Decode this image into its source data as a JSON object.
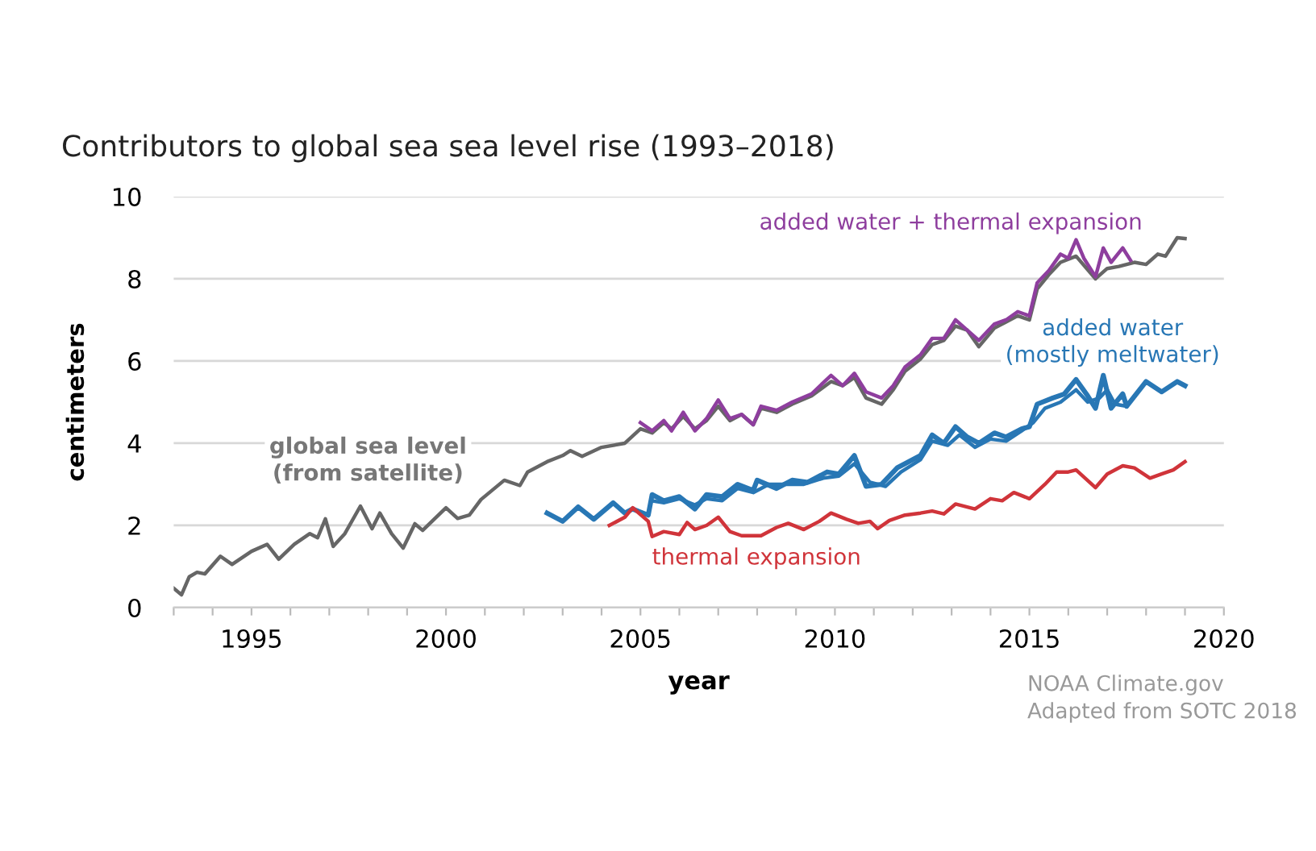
{
  "chart_data": {
    "type": "line",
    "title": "Contributors to global sea sea level rise (1993–2018)",
    "xlabel": "year",
    "ylabel": "centimeters",
    "xlim": [
      1993,
      2020
    ],
    "ylim": [
      0,
      10
    ],
    "yticks": [
      0,
      2,
      4,
      6,
      8,
      10
    ],
    "xticks": [
      {
        "value": 1993,
        "label": null
      },
      {
        "value": 1994,
        "label": null
      },
      {
        "value": 1995,
        "label": "1995"
      },
      {
        "value": 1996,
        "label": null
      },
      {
        "value": 1997,
        "label": null
      },
      {
        "value": 1998,
        "label": null
      },
      {
        "value": 1999,
        "label": null
      },
      {
        "value": 2000,
        "label": "2000"
      },
      {
        "value": 2001,
        "label": null
      },
      {
        "value": 2002,
        "label": null
      },
      {
        "value": 2003,
        "label": null
      },
      {
        "value": 2004,
        "label": null
      },
      {
        "value": 2005,
        "label": "2005"
      },
      {
        "value": 2006,
        "label": null
      },
      {
        "value": 2007,
        "label": null
      },
      {
        "value": 2008,
        "label": null
      },
      {
        "value": 2009,
        "label": null
      },
      {
        "value": 2010,
        "label": "2010"
      },
      {
        "value": 2011,
        "label": null
      },
      {
        "value": 2012,
        "label": null
      },
      {
        "value": 2013,
        "label": null
      },
      {
        "value": 2014,
        "label": null
      },
      {
        "value": 2015,
        "label": "2015"
      },
      {
        "value": 2016,
        "label": null
      },
      {
        "value": 2017,
        "label": null
      },
      {
        "value": 2018,
        "label": null
      },
      {
        "value": 2019,
        "label": null
      },
      {
        "value": 2020,
        "label": "2020"
      }
    ],
    "grid": "y",
    "legend": false,
    "marker": "none",
    "line_style": "solid",
    "series": [
      {
        "name": "global sea level\n(from satellite)",
        "color": "#666666",
        "x": [
          1993.0,
          1993.2,
          1993.4,
          1993.6,
          1993.8,
          1994.2,
          1994.5,
          1995.0,
          1995.4,
          1995.7,
          1996.1,
          1996.5,
          1996.7,
          1996.9,
          1997.1,
          1997.4,
          1997.8,
          1998.1,
          1998.3,
          1998.6,
          1998.9,
          1999.2,
          1999.4,
          2000.0,
          2000.3,
          2000.6,
          2000.9,
          2001.5,
          2001.9,
          2002.1,
          2002.6,
          2003.0,
          2003.2,
          2003.5,
          2004.0,
          2004.6,
          2005.0,
          2005.3,
          2005.6,
          2005.8,
          2006.1,
          2006.4,
          2006.7,
          2007.0,
          2007.3,
          2007.6,
          2007.9,
          2008.1,
          2008.5,
          2008.9,
          2009.4,
          2009.9,
          2010.2,
          2010.5,
          2010.8,
          2011.2,
          2011.5,
          2011.8,
          2012.2,
          2012.5,
          2012.8,
          2013.1,
          2013.4,
          2013.7,
          2014.1,
          2014.4,
          2014.7,
          2015.0,
          2015.2,
          2015.5,
          2015.8,
          2016.2,
          2016.7,
          2017.0,
          2017.3,
          2017.7,
          2018.0,
          2018.3,
          2018.5,
          2018.8,
          2019.0
        ],
        "values": [
          0.47,
          0.31,
          0.75,
          0.86,
          0.82,
          1.25,
          1.05,
          1.37,
          1.54,
          1.18,
          1.54,
          1.8,
          1.7,
          2.16,
          1.49,
          1.8,
          2.47,
          1.92,
          2.3,
          1.8,
          1.45,
          2.04,
          1.88,
          2.43,
          2.17,
          2.25,
          2.63,
          3.1,
          2.97,
          3.3,
          3.55,
          3.7,
          3.82,
          3.68,
          3.9,
          4.0,
          4.35,
          4.25,
          4.5,
          4.35,
          4.65,
          4.35,
          4.55,
          4.9,
          4.55,
          4.7,
          4.45,
          4.85,
          4.75,
          4.95,
          5.15,
          5.5,
          5.4,
          5.6,
          5.1,
          4.95,
          5.3,
          5.75,
          6.05,
          6.4,
          6.5,
          6.85,
          6.75,
          6.35,
          6.8,
          6.95,
          7.1,
          7.0,
          7.75,
          8.1,
          8.4,
          8.55,
          8.0,
          8.25,
          8.3,
          8.4,
          8.35,
          8.6,
          8.55,
          9.0,
          8.98
        ]
      },
      {
        "name": "added water + thermal expansion",
        "color": "#8e3e9e",
        "x": [
          2005.0,
          2005.3,
          2005.6,
          2005.8,
          2006.1,
          2006.4,
          2006.7,
          2007.0,
          2007.3,
          2007.6,
          2007.9,
          2008.1,
          2008.5,
          2008.9,
          2009.4,
          2009.9,
          2010.2,
          2010.5,
          2010.8,
          2011.2,
          2011.5,
          2011.8,
          2012.2,
          2012.5,
          2012.8,
          2013.1,
          2013.4,
          2013.7,
          2014.1,
          2014.4,
          2014.7,
          2015.0,
          2015.2,
          2015.5,
          2015.8,
          2016.0,
          2016.2,
          2016.4,
          2016.7,
          2016.9,
          2017.1,
          2017.4,
          2017.6
        ],
        "values": [
          4.5,
          4.3,
          4.55,
          4.3,
          4.75,
          4.3,
          4.6,
          5.05,
          4.6,
          4.7,
          4.45,
          4.9,
          4.8,
          5.0,
          5.2,
          5.65,
          5.4,
          5.7,
          5.25,
          5.1,
          5.4,
          5.85,
          6.15,
          6.55,
          6.55,
          7.0,
          6.75,
          6.5,
          6.9,
          7.0,
          7.2,
          7.1,
          7.9,
          8.2,
          8.6,
          8.5,
          8.95,
          8.5,
          8.05,
          8.75,
          8.4,
          8.75,
          8.45
        ]
      },
      {
        "name": "added water\n(mostly meltwater)",
        "color": "#2877b5",
        "x": [
          2002.6,
          2003.0,
          2003.4,
          2003.8,
          2004.3,
          2004.6,
          2004.8,
          2005.2,
          2005.3,
          2005.6,
          2006.0,
          2006.4,
          2006.7,
          2007.1,
          2007.5,
          2007.9,
          2008.0,
          2008.5,
          2008.9,
          2009.3,
          2009.8,
          2010.1,
          2010.5,
          2010.8,
          2011.2,
          2011.6,
          2012.2,
          2012.5,
          2012.8,
          2013.1,
          2013.4,
          2013.7,
          2014.1,
          2014.4,
          2014.8,
          2015.0,
          2015.2,
          2015.6,
          2015.9,
          2016.2,
          2016.5,
          2016.7,
          2016.9,
          2017.1,
          2017.4,
          2017.5,
          2018.0,
          2018.4,
          2018.8,
          2019.0
        ],
        "values": [
          2.3,
          2.1,
          2.45,
          2.15,
          2.55,
          2.3,
          2.4,
          2.25,
          2.75,
          2.6,
          2.7,
          2.4,
          2.75,
          2.7,
          3.0,
          2.85,
          3.1,
          2.9,
          3.1,
          3.05,
          3.3,
          3.25,
          3.7,
          2.95,
          3.0,
          3.4,
          3.7,
          4.2,
          4.0,
          4.4,
          4.15,
          4.0,
          4.25,
          4.15,
          4.35,
          4.4,
          4.95,
          5.1,
          5.2,
          5.55,
          5.15,
          4.85,
          5.65,
          4.85,
          5.2,
          4.9,
          5.5,
          5.25,
          5.5,
          5.4
        ]
      },
      {
        "color": "#2877b5",
        "x": [
          2005.3,
          2005.6,
          2006.0,
          2006.4,
          2006.7,
          2007.1,
          2007.5,
          2007.9,
          2008.3,
          2008.7,
          2009.2,
          2009.7,
          2010.1,
          2010.5,
          2010.9,
          2011.3,
          2011.7,
          2012.2,
          2012.5,
          2012.9,
          2013.2,
          2013.6,
          2014.0,
          2014.4,
          2014.8,
          2015.1,
          2015.4,
          2015.8,
          2016.2,
          2016.5,
          2016.8,
          2017.0,
          2017.2,
          2017.5
        ],
        "values": [
          2.6,
          2.55,
          2.65,
          2.5,
          2.65,
          2.6,
          2.9,
          2.8,
          3.0,
          3.0,
          3.0,
          3.15,
          3.2,
          3.5,
          3.05,
          2.95,
          3.3,
          3.6,
          4.05,
          3.95,
          4.2,
          3.9,
          4.1,
          4.05,
          4.3,
          4.5,
          4.85,
          5.0,
          5.3,
          5.0,
          5.1,
          5.3,
          4.95,
          4.9
        ]
      },
      {
        "name": "thermal expansion",
        "color": "#d0343a",
        "x": [
          2004.2,
          2004.6,
          2004.8,
          2005.2,
          2005.3,
          2005.6,
          2006.0,
          2006.2,
          2006.4,
          2006.7,
          2007.0,
          2007.3,
          2007.6,
          2008.1,
          2008.5,
          2008.8,
          2009.2,
          2009.6,
          2009.9,
          2010.3,
          2010.6,
          2010.9,
          2011.1,
          2011.4,
          2011.8,
          2012.2,
          2012.5,
          2012.8,
          2013.1,
          2013.6,
          2014.0,
          2014.3,
          2014.6,
          2015.0,
          2015.4,
          2015.7,
          2016.0,
          2016.2,
          2016.7,
          2017.0,
          2017.4,
          2017.7,
          2018.1,
          2018.4,
          2018.7,
          2019.0
        ],
        "values": [
          2.0,
          2.2,
          2.43,
          2.1,
          1.73,
          1.85,
          1.78,
          2.07,
          1.9,
          2.0,
          2.2,
          1.85,
          1.75,
          1.75,
          1.95,
          2.05,
          1.9,
          2.1,
          2.3,
          2.15,
          2.05,
          2.1,
          1.92,
          2.12,
          2.25,
          2.3,
          2.35,
          2.28,
          2.52,
          2.4,
          2.65,
          2.6,
          2.8,
          2.65,
          3.0,
          3.3,
          3.3,
          3.35,
          2.92,
          3.25,
          3.45,
          3.4,
          3.15,
          3.25,
          3.35,
          3.55
        ]
      }
    ],
    "annotations": [
      "NOAA Climate.gov",
      "Adapted from SOTC 2018"
    ]
  }
}
